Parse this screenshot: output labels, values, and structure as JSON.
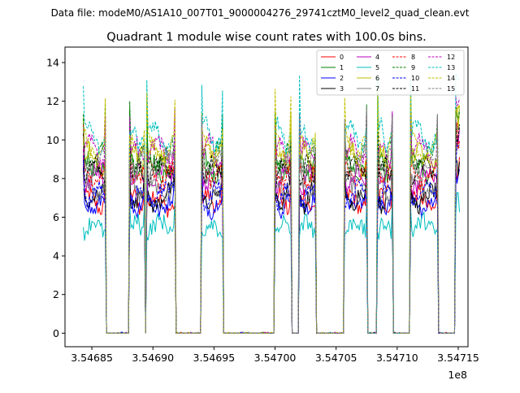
{
  "figure": {
    "suptitle": "Data file: modeM0/AS1A10_007T01_9000004276_29741cztM0_level2_quad_clean.evt",
    "title": "Quadrant 1 module wise count rates with 100.0s bins."
  },
  "chart_data": {
    "type": "line",
    "title": "Quadrant 1 module wise count rates with 100.0s bins.",
    "xlabel": "",
    "ylabel": "",
    "x_offset_label": "1e8",
    "xlim": [
      354682800,
      354715800
    ],
    "ylim": [
      -0.7,
      14.8
    ],
    "xticks": [
      354685000,
      354690000,
      354695000,
      354700000,
      354705000,
      354710000,
      354715000
    ],
    "xtick_labels": [
      "3.54685",
      "3.54690",
      "3.54695",
      "3.54700",
      "3.54705",
      "3.54710",
      "3.54715"
    ],
    "yticks": [
      0,
      2,
      4,
      6,
      8,
      10,
      12,
      14
    ],
    "ytick_labels": [
      "0",
      "2",
      "4",
      "6",
      "8",
      "10",
      "12",
      "14"
    ],
    "grid": false,
    "legend_position": "top-right",
    "legend_columns": 4,
    "active_intervals": [
      [
        354684300,
        354686100
      ],
      [
        354688100,
        354689300
      ],
      [
        354689500,
        354691800
      ],
      [
        354694000,
        354695700
      ],
      [
        354700000,
        354701300
      ],
      [
        354702000,
        354703300
      ],
      [
        354705700,
        354707500
      ],
      [
        354708400,
        354709600
      ],
      [
        354711100,
        354713300
      ],
      [
        354714800,
        354715100
      ]
    ],
    "series": [
      {
        "name": "0",
        "color": "#ff0000",
        "dash": "solid",
        "level": 6.8
      },
      {
        "name": "1",
        "color": "#008000",
        "dash": "solid",
        "level": 8.6
      },
      {
        "name": "2",
        "color": "#0000ff",
        "dash": "solid",
        "level": 6.7
      },
      {
        "name": "3",
        "color": "#000000",
        "dash": "solid",
        "level": 7.0
      },
      {
        "name": "4",
        "color": "#bf00bf",
        "dash": "solid",
        "level": 8.0
      },
      {
        "name": "5",
        "color": "#00bfbf",
        "dash": "solid",
        "level": 5.5
      },
      {
        "name": "6",
        "color": "#bfbf00",
        "dash": "solid",
        "level": 9.0
      },
      {
        "name": "7",
        "color": "#808080",
        "dash": "solid",
        "level": 7.5
      },
      {
        "name": "8",
        "color": "#ff0000",
        "dash": "dashed",
        "level": 8.2
      },
      {
        "name": "9",
        "color": "#008000",
        "dash": "dashed",
        "level": 9.1
      },
      {
        "name": "10",
        "color": "#0000ff",
        "dash": "dashed",
        "level": 7.2
      },
      {
        "name": "11",
        "color": "#000000",
        "dash": "dashed",
        "level": 8.4
      },
      {
        "name": "12",
        "color": "#bf00bf",
        "dash": "dashed",
        "level": 9.4
      },
      {
        "name": "13",
        "color": "#00bfbf",
        "dash": "dashed",
        "level": 10.2
      },
      {
        "name": "14",
        "color": "#bfbf00",
        "dash": "dashed",
        "level": 9.6
      },
      {
        "name": "15",
        "color": "#808080",
        "dash": "dashed",
        "level": 8.8
      }
    ]
  }
}
